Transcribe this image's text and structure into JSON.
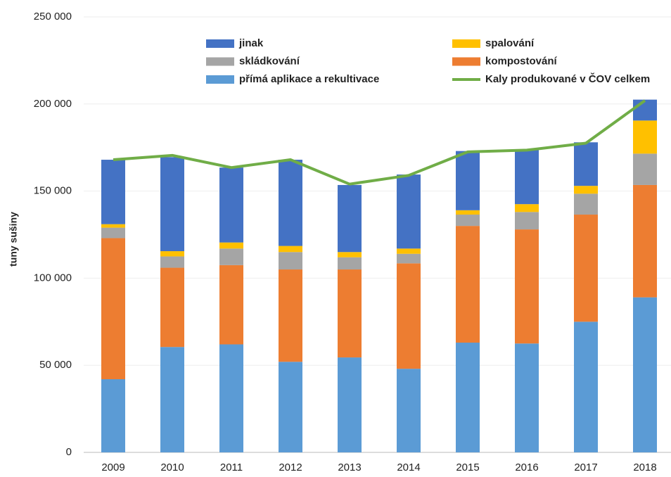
{
  "chart_data": {
    "type": "bar",
    "y_label": "tuny sušiny",
    "categories": [
      "2009",
      "2010",
      "2011",
      "2012",
      "2013",
      "2014",
      "2015",
      "2016",
      "2017",
      "2018"
    ],
    "stacked": true,
    "series": [
      {
        "name": "přímá aplikace a rekultivace",
        "color": "#5b9bd5",
        "values": [
          42000,
          60500,
          62000,
          52000,
          54500,
          48000,
          63000,
          62500,
          75000,
          89000
        ]
      },
      {
        "name": "kompostování",
        "color": "#ed7d31",
        "values": [
          81000,
          45500,
          45500,
          53000,
          50500,
          60500,
          67000,
          65500,
          61500,
          64500
        ]
      },
      {
        "name": "skládkování",
        "color": "#a5a5a5",
        "values": [
          6000,
          6500,
          9500,
          10000,
          7000,
          5500,
          6500,
          10000,
          12000,
          18000
        ]
      },
      {
        "name": "spalování",
        "color": "#ffc000",
        "values": [
          2000,
          3000,
          3500,
          3500,
          3000,
          3000,
          2500,
          4500,
          4500,
          19000
        ]
      },
      {
        "name": "jinak",
        "color": "#4472c4",
        "values": [
          37000,
          54000,
          43000,
          49500,
          38500,
          42500,
          34000,
          31000,
          25000,
          12000
        ]
      },
      {
        "name": "Kaly produkované v ČOV celkem",
        "color": "#70ad47",
        "type": "line",
        "values": [
          168000,
          170500,
          163500,
          168000,
          154000,
          159000,
          172500,
          173500,
          177500,
          202000
        ]
      }
    ],
    "ylim": [
      0,
      250000
    ],
    "yticks": [
      0,
      {
        "value": 50000,
        "label": "50 000"
      },
      {
        "value": 100000,
        "label": "100 000"
      },
      {
        "value": 150000,
        "label": "150 000"
      },
      {
        "value": 200000,
        "label": "200 000"
      },
      {
        "value": 250000,
        "label": "250 000"
      }
    ],
    "grid": true
  }
}
